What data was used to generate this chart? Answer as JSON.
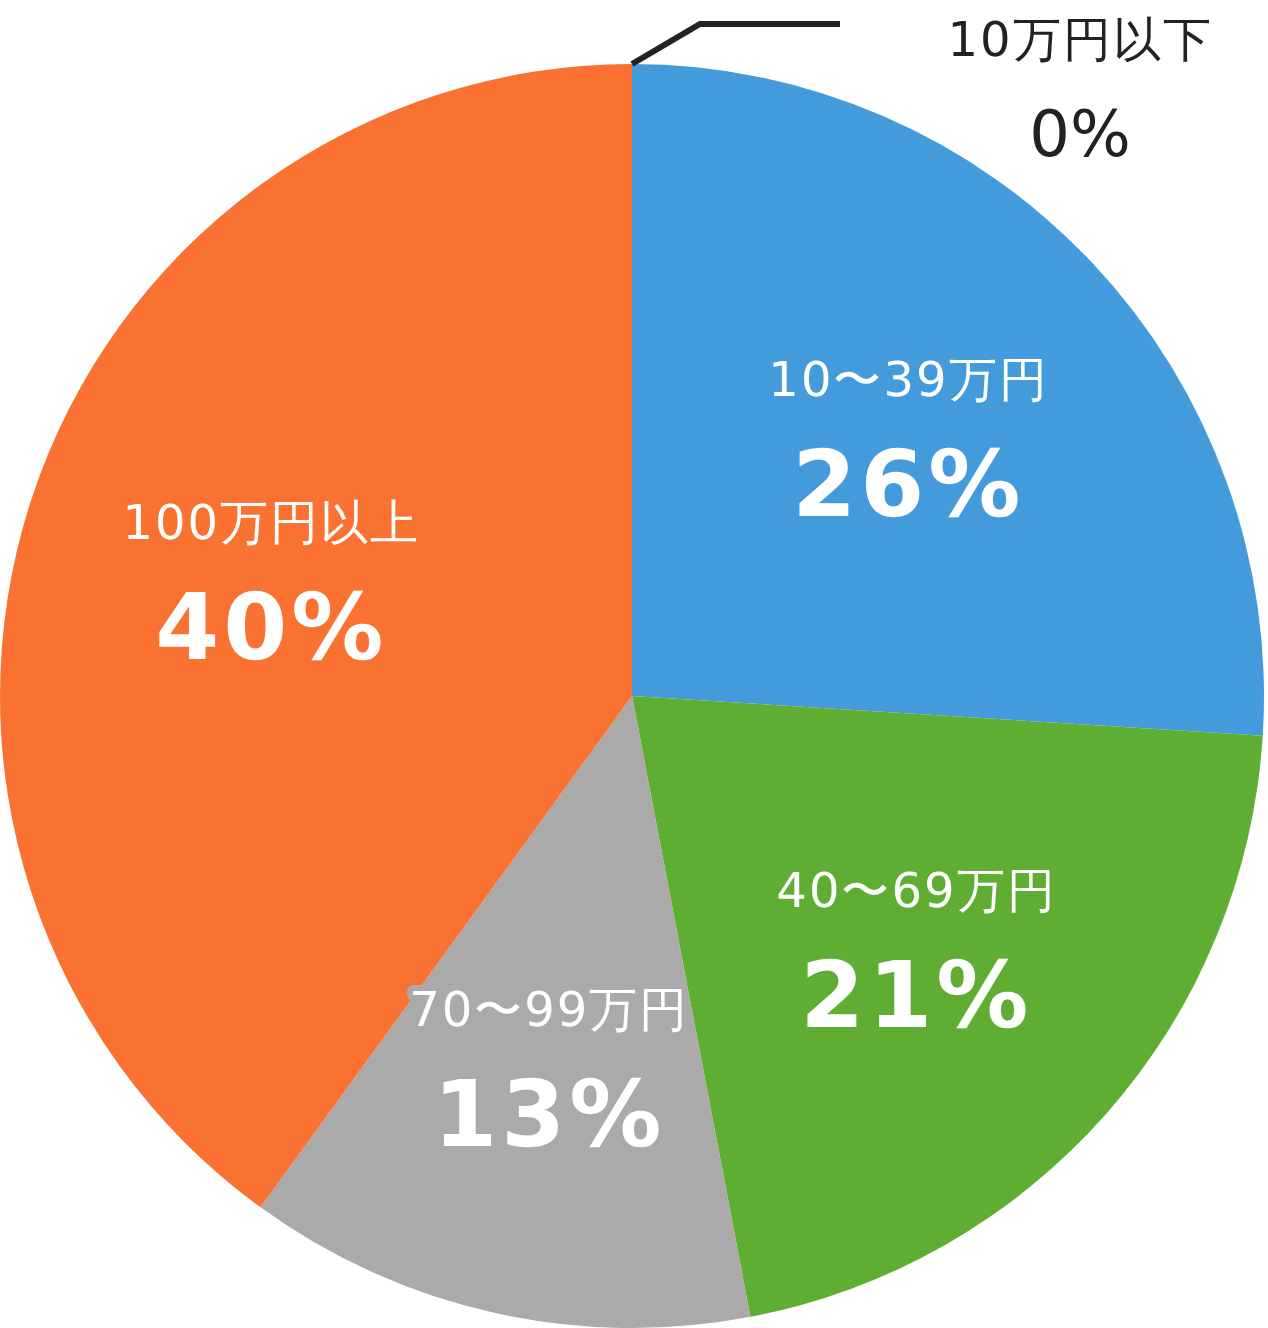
{
  "chart_data": {
    "type": "pie",
    "categories": [
      "10万円以下",
      "10〜39万円",
      "40〜69万円",
      "70〜99万円",
      "100万円以上"
    ],
    "values": [
      0,
      26,
      21,
      13,
      40
    ],
    "colors": [
      "#333333",
      "#439bdb",
      "#5fae33",
      "#aaaaaa",
      "#f97232"
    ],
    "value_labels": [
      "0%",
      "26%",
      "21%",
      "13%",
      "40%"
    ]
  }
}
